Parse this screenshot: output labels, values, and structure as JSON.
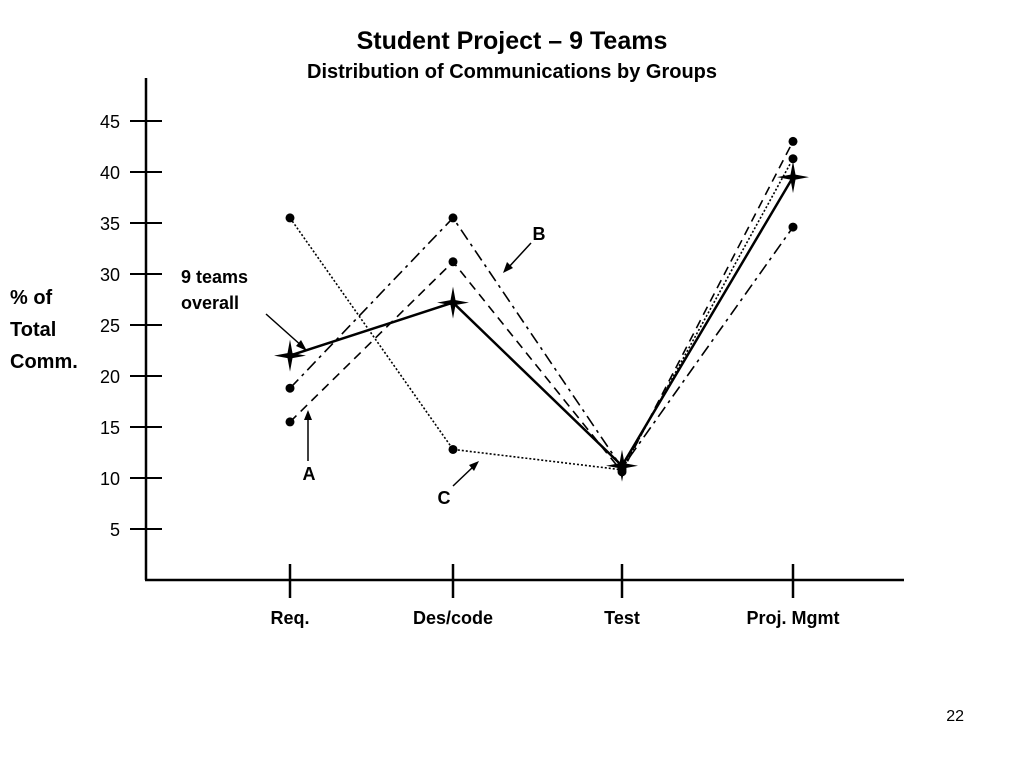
{
  "slide": {
    "title": "Student Project – 9 Teams",
    "subtitle": "Distribution of Communications by Groups",
    "page_number": "22"
  },
  "annotations": {
    "overall_label_1": "9 teams",
    "overall_label_2": "overall",
    "a": "A",
    "b": "B",
    "c": "C"
  },
  "chart_data": {
    "type": "line",
    "title": "Distribution of Communications by Groups",
    "ylabel": [
      "% of",
      "Total",
      "Comm."
    ],
    "xlabel": "",
    "categories": [
      "Req.",
      "Des/code",
      "Test",
      "Proj. Mgmt"
    ],
    "yticks": [
      5,
      10,
      15,
      20,
      25,
      30,
      35,
      40,
      45
    ],
    "ylim": [
      0,
      50
    ],
    "grid": false,
    "legend": "none",
    "series": [
      {
        "name": "9 teams overall",
        "style": "solid",
        "marker": "star",
        "values": [
          22,
          27.2,
          11.2,
          39.5
        ]
      },
      {
        "name": "A",
        "style": "dashed",
        "marker": "dot",
        "values": [
          15.5,
          31.2,
          10.6,
          43
        ]
      },
      {
        "name": "B",
        "style": "dashdot",
        "marker": "dot",
        "values": [
          18.8,
          35.5,
          11,
          34.6
        ]
      },
      {
        "name": "C",
        "style": "dotted",
        "marker": "dot",
        "values": [
          35.5,
          12.8,
          10.8,
          41.3
        ]
      }
    ]
  }
}
